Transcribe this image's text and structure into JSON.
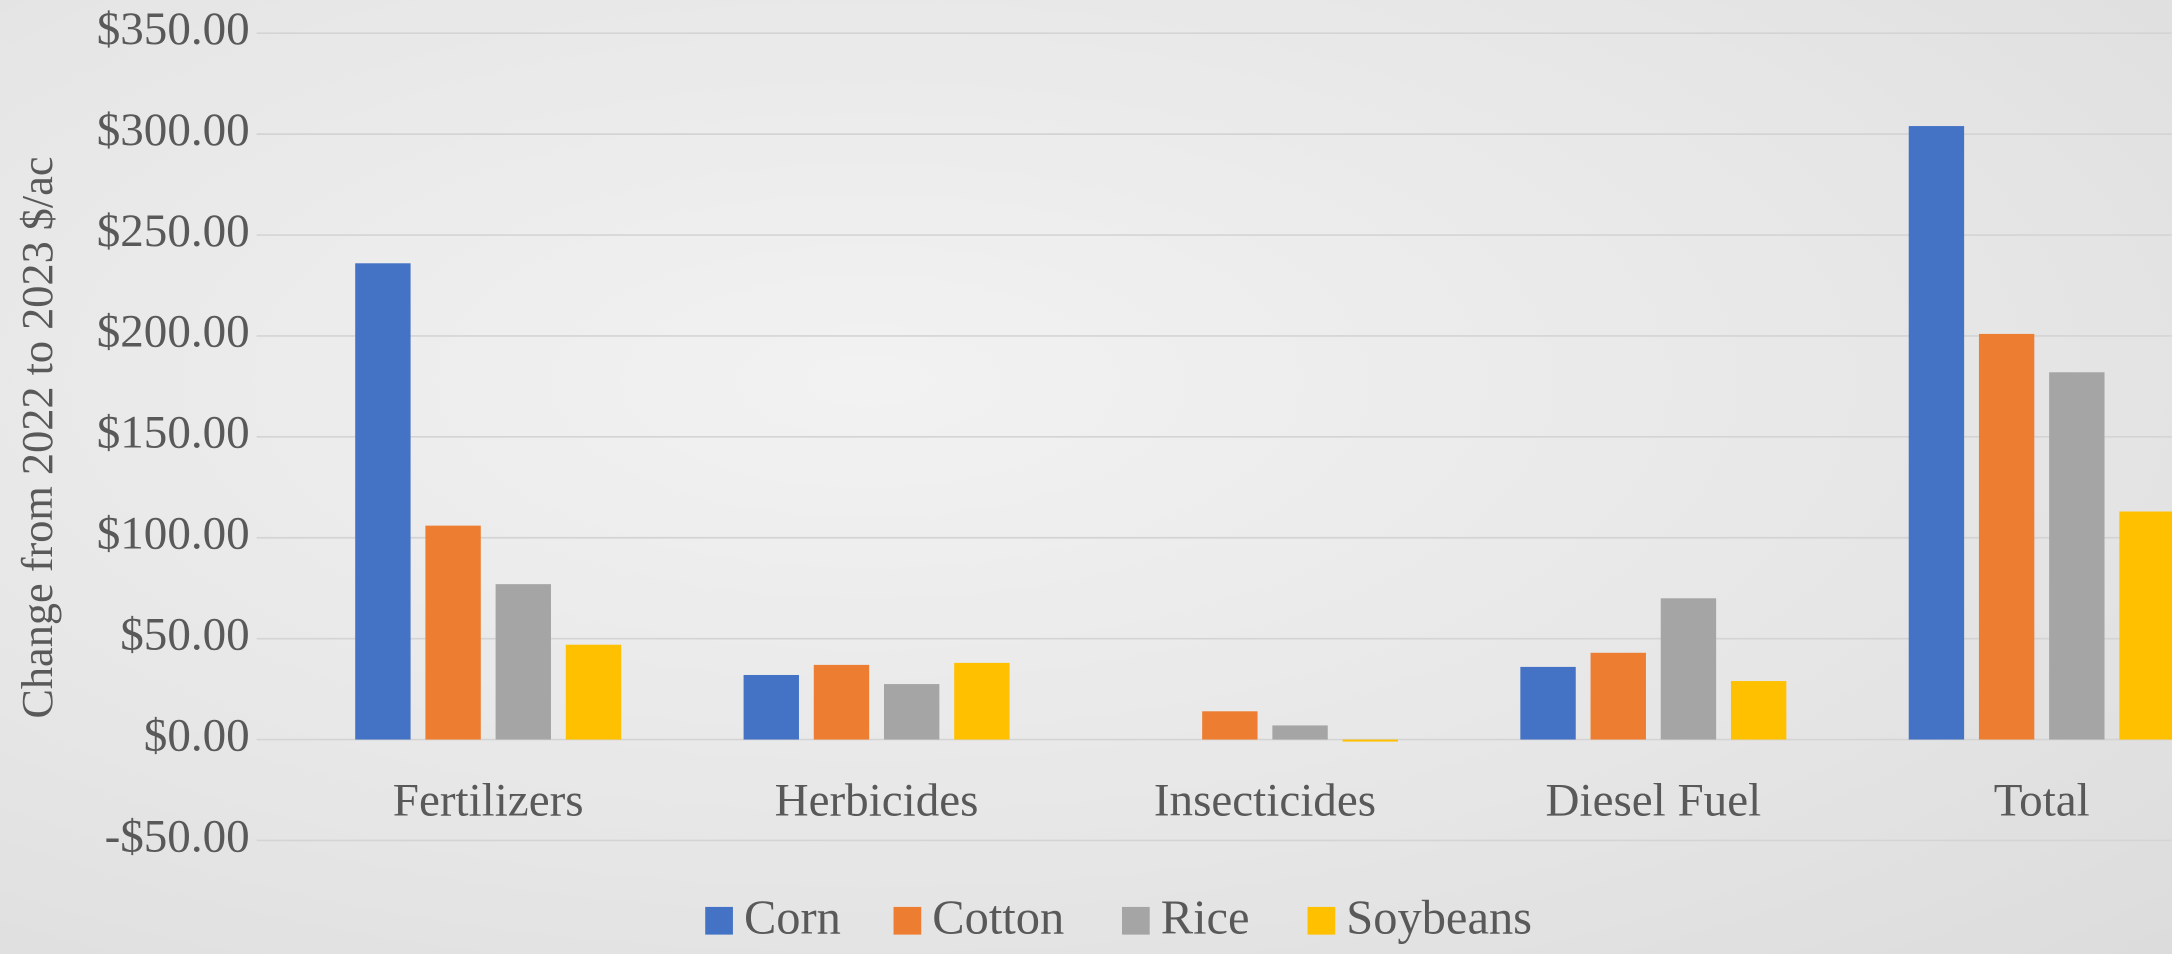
{
  "chart_data": {
    "type": "bar",
    "y_axis_label": "Change from 2022 to 2023 $/ac",
    "categories": [
      "Fertilizers",
      "Herbicides",
      "Insecticides",
      "Diesel Fuel",
      "Total"
    ],
    "series": [
      {
        "name": "Corn",
        "color": "#4472c4",
        "values": [
          236,
          32,
          0,
          36,
          304
        ]
      },
      {
        "name": "Cotton",
        "color": "#ed7d31",
        "values": [
          106,
          37,
          14,
          43,
          201
        ]
      },
      {
        "name": "Rice",
        "color": "#a5a5a5",
        "values": [
          77,
          27.5,
          7,
          70,
          182
        ]
      },
      {
        "name": "Soybeans",
        "color": "#ffc000",
        "values": [
          47,
          38,
          -1,
          29,
          113
        ]
      }
    ],
    "ylim": [
      -50,
      350
    ],
    "yticks": [
      {
        "value": -50,
        "label": "-$50.00"
      },
      {
        "value": 0,
        "label": "$0.00"
      },
      {
        "value": 50,
        "label": "$50.00"
      },
      {
        "value": 100,
        "label": "$100.00"
      },
      {
        "value": 150,
        "label": "$150.00"
      },
      {
        "value": 200,
        "label": "$200.00"
      },
      {
        "value": 250,
        "label": "$250.00"
      },
      {
        "value": 300,
        "label": "$300.00"
      },
      {
        "value": 350,
        "label": "$350.00"
      }
    ],
    "grid": true,
    "legend": "bottom"
  }
}
